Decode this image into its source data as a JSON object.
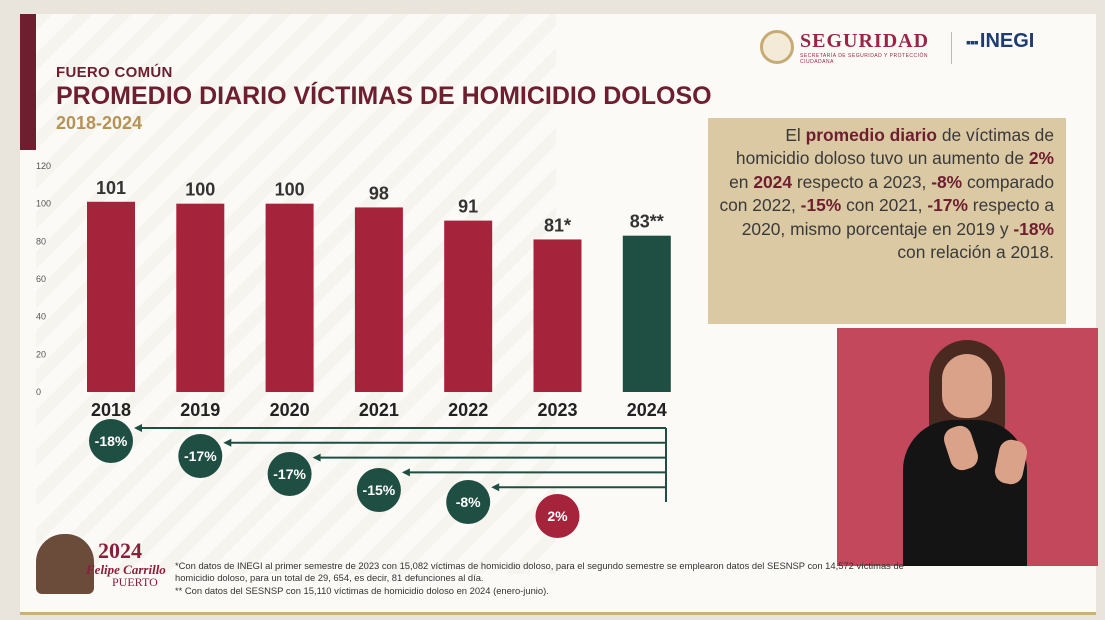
{
  "header": {
    "kicker": "FUERO COMÚN",
    "title": "PROMEDIO DIARIO VÍCTIMAS DE HOMICIDIO DOLOSO",
    "period": "2018-2024"
  },
  "logos": {
    "seguridad": "SEGURIDAD",
    "seguridad_sub": "SECRETARÍA DE SEGURIDAD Y PROTECCIÓN CIUDADANA",
    "inegi": "INEGI",
    "commemorative_year": "2024",
    "commemorative_name1": "Felipe Carrillo",
    "commemorative_name2": "PUERTO"
  },
  "summary": {
    "p1": "El ",
    "h1": "promedio diario",
    "p2": " de víctimas de homicidio doloso tuvo un aumento de ",
    "h2": "2%",
    "p3": " en ",
    "h3": "2024",
    "p4": " respecto a 2023, ",
    "h4": "-8%",
    "p5": " comparado con 2022, ",
    "h5": "-15%",
    "p6": " con 2021, ",
    "h6": "-17%",
    "p7": " respecto a 2020, mismo porcentaje en 2019 y ",
    "h7": "-18%",
    "p8": " con relación a 2018."
  },
  "chart_data": {
    "type": "bar",
    "categories": [
      "2018",
      "2019",
      "2020",
      "2021",
      "2022",
      "2023",
      "2024"
    ],
    "values": [
      101,
      100,
      100,
      98,
      91,
      81,
      83
    ],
    "value_labels": [
      "101",
      "100",
      "100",
      "98",
      "91",
      "81*",
      "83**"
    ],
    "ylim": [
      0,
      120
    ],
    "yticks": [
      0,
      20,
      40,
      60,
      80,
      100,
      120
    ],
    "bar_colors": [
      "#a6243b",
      "#a6243b",
      "#a6243b",
      "#a6243b",
      "#a6243b",
      "#a6243b",
      "#1f4e43"
    ],
    "comparisons": [
      {
        "year": "2018",
        "label": "-18%"
      },
      {
        "year": "2019",
        "label": "-17%"
      },
      {
        "year": "2020",
        "label": "-17%"
      },
      {
        "year": "2021",
        "label": "-15%"
      },
      {
        "year": "2022",
        "label": "-8%"
      },
      {
        "year": "2023",
        "label": "2%"
      }
    ],
    "badge_colors": {
      "decrease": "#1f4e43",
      "increase": "#a6243b"
    }
  },
  "footnotes": {
    "line1": "*Con datos de INEGI al primer semestre de 2023 con 15,082 víctimas de homicidio doloso, para el segundo semestre se emplearon datos del SESNSP con 14,572 víctimas de",
    "line2": "homicidio doloso, para un total de 29, 654, es decir, 81 defunciones al día.",
    "line3": "** Con datos del SESNSP con 15,110 víctimas de homicidio doloso en 2024 (enero-junio)."
  }
}
